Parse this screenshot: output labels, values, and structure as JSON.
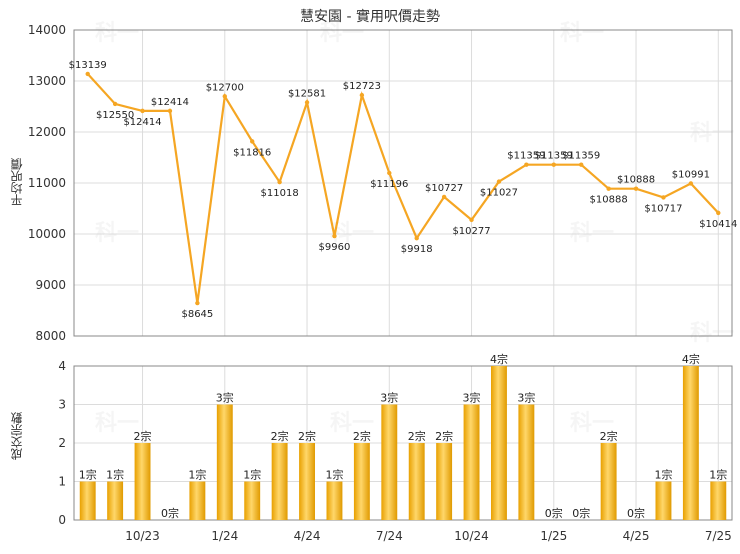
{
  "title": "慧安園 - 實用呎價走勢",
  "price_axis_label": "平均呎價",
  "count_axis_label": "成交宗數",
  "watermark": "科一",
  "colors": {
    "line": "#f5a623",
    "bar_light": "#ffd76a",
    "bar_dark": "#e09a00",
    "grid": "#dcdcdc",
    "axis": "#888888"
  },
  "chart_data": [
    {
      "type": "line",
      "title": "慧安園 - 實用呎價走勢",
      "ylabel": "平均呎價",
      "ylim": [
        8000,
        14000
      ],
      "y_ticks": [
        8000,
        9000,
        10000,
        11000,
        12000,
        13000,
        14000
      ],
      "grid": true,
      "values": [
        13139,
        12550,
        12414,
        12414,
        8645,
        12700,
        11816,
        11018,
        12581,
        9960,
        12723,
        11196,
        9918,
        10727,
        10277,
        11027,
        11359,
        11359,
        11359,
        10888,
        10888,
        10717,
        10991,
        10414
      ],
      "labels": [
        "$13139",
        "$12550",
        "$12414",
        "$12414",
        "$8645",
        "$12700",
        "$11816",
        "$11018",
        "$12581",
        "$9960",
        "$12723",
        "$11196",
        "$9918",
        "$10727",
        "$10277",
        "$11027",
        "$11359",
        "$11359",
        "$11359",
        "$10888",
        "$10888",
        "$10717",
        "$10991",
        "$10414"
      ]
    },
    {
      "type": "bar",
      "ylabel": "成交宗數",
      "ylim": [
        0,
        4
      ],
      "y_ticks": [
        0,
        1,
        2,
        3,
        4
      ],
      "grid": true,
      "values": [
        1,
        1,
        2,
        0,
        1,
        3,
        1,
        2,
        2,
        1,
        2,
        3,
        2,
        2,
        3,
        4,
        3,
        0,
        0,
        2,
        0,
        1,
        4,
        1
      ],
      "labels": [
        "1宗",
        "1宗",
        "2宗",
        "0宗",
        "1宗",
        "3宗",
        "1宗",
        "2宗",
        "2宗",
        "1宗",
        "2宗",
        "3宗",
        "2宗",
        "2宗",
        "3宗",
        "4宗",
        "3宗",
        "0宗",
        "0宗",
        "2宗",
        "0宗",
        "1宗",
        "4宗",
        "1宗"
      ],
      "x_tick_labels": [
        "10/23",
        "1/24",
        "4/24",
        "7/24",
        "10/24",
        "1/25",
        "4/25",
        "7/25"
      ],
      "x_tick_indices": [
        2,
        5,
        8,
        11,
        14,
        17,
        20,
        23
      ]
    }
  ]
}
